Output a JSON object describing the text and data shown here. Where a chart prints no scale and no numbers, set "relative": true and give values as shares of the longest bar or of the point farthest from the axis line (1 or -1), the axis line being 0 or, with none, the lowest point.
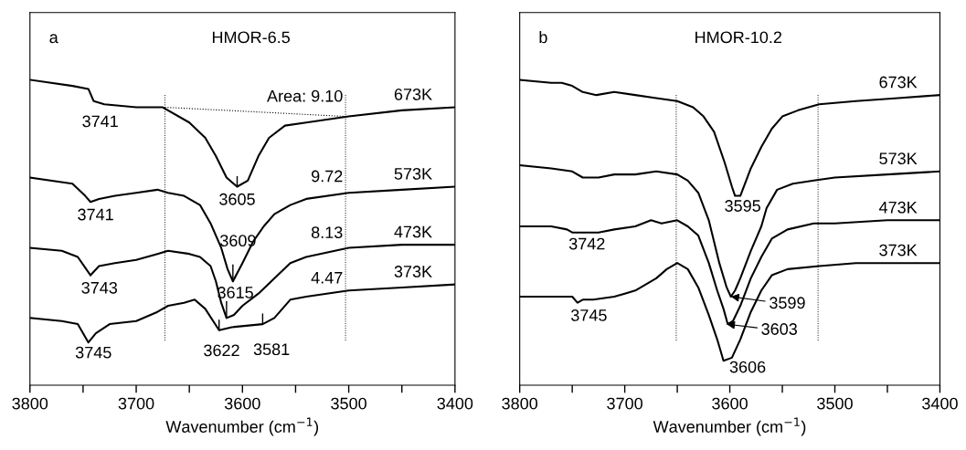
{
  "chart_data": [
    {
      "type": "line",
      "relative": true,
      "title": "HMOR-6.5",
      "xlabel": "Wavenumber (cm$^{−1}$)",
      "xlim": [
        3800,
        3400
      ],
      "xticks": [
        3800,
        {
          "value": 3750,
          "label": null
        },
        3700,
        {
          "value": 3650,
          "label": null
        },
        3600,
        {
          "value": 3550,
          "label": null
        },
        3500,
        {
          "value": 3450,
          "label": null
        },
        3400
      ],
      "grid": false,
      "legend": false,
      "marker": "none",
      "line_style": "solid",
      "ref_lines": [
        {
          "axis": "x",
          "value": 3673,
          "label": null,
          "color": "#000000",
          "line_style": "dotted"
        },
        {
          "axis": "x",
          "value": 3503,
          "label": null,
          "color": "#000000",
          "line_style": "dotted"
        }
      ],
      "series": [
        {
          "name": "673K",
          "color": "#000000",
          "x": [
            3800,
            3760,
            3745,
            3740,
            3730,
            3700,
            3675,
            3650,
            3635,
            3625,
            3615,
            3605,
            3595,
            3585,
            3575,
            3560,
            3540,
            3500,
            3450,
            3400
          ],
          "values": [
            1.0,
            0.98,
            0.97,
            0.93,
            0.92,
            0.91,
            0.91,
            0.86,
            0.81,
            0.75,
            0.68,
            0.65,
            0.67,
            0.75,
            0.81,
            0.85,
            0.86,
            0.88,
            0.9,
            0.91
          ]
        },
        {
          "name": "573K",
          "color": "#000000",
          "x": [
            3800,
            3760,
            3748,
            3743,
            3735,
            3720,
            3700,
            3680,
            3670,
            3655,
            3640,
            3630,
            3620,
            3614,
            3609,
            3600,
            3590,
            3580,
            3570,
            3555,
            3540,
            3500,
            3450,
            3400
          ],
          "values": [
            0.68,
            0.66,
            0.62,
            0.6,
            0.61,
            0.62,
            0.63,
            0.64,
            0.63,
            0.62,
            0.59,
            0.53,
            0.45,
            0.38,
            0.34,
            0.4,
            0.47,
            0.52,
            0.56,
            0.59,
            0.61,
            0.63,
            0.64,
            0.65
          ]
        },
        {
          "name": "473K",
          "color": "#000000",
          "x": [
            3800,
            3770,
            3755,
            3743,
            3735,
            3720,
            3700,
            3680,
            3670,
            3650,
            3640,
            3630,
            3625,
            3620,
            3615,
            3608,
            3600,
            3585,
            3570,
            3555,
            3540,
            3500,
            3450,
            3400
          ],
          "values": [
            0.45,
            0.44,
            0.42,
            0.36,
            0.39,
            0.4,
            0.41,
            0.43,
            0.44,
            0.43,
            0.42,
            0.39,
            0.34,
            0.27,
            0.22,
            0.23,
            0.26,
            0.3,
            0.35,
            0.4,
            0.42,
            0.45,
            0.46,
            0.46
          ]
        },
        {
          "name": "373K",
          "color": "#000000",
          "x": [
            3800,
            3770,
            3755,
            3745,
            3738,
            3725,
            3700,
            3680,
            3670,
            3655,
            3645,
            3635,
            3622,
            3610,
            3581,
            3570,
            3555,
            3540,
            3500,
            3450,
            3400
          ],
          "values": [
            0.22,
            0.21,
            0.2,
            0.14,
            0.17,
            0.2,
            0.21,
            0.24,
            0.26,
            0.27,
            0.28,
            0.25,
            0.18,
            0.19,
            0.2,
            0.22,
            0.28,
            0.29,
            0.31,
            0.32,
            0.33
          ]
        },
        {
          "type": "line",
          "color": "#000000",
          "line_style": "dotted",
          "x": [
            3673,
            3503
          ],
          "values": [
            0.91,
            0.88
          ]
        }
      ],
      "annotations": [
        "a",
        {
          "text": "3741",
          "x": 3741,
          "y": 0.93
        },
        {
          "text": "3605",
          "x": 3605,
          "y": 0.65
        },
        {
          "text": "3741",
          "x": 3743,
          "y": 0.6
        },
        {
          "text": "3609",
          "x": 3609,
          "y": 0.34
        },
        {
          "text": "3743",
          "x": 3743,
          "y": 0.36
        },
        {
          "text": "3615",
          "x": 3615,
          "y": 0.22
        },
        {
          "text": "3745",
          "x": 3745,
          "y": 0.14
        },
        {
          "text": "3622",
          "x": 3622,
          "y": 0.18
        },
        {
          "text": "3581",
          "x": 3581,
          "y": 0.2
        },
        {
          "text": "Area: 9.10",
          "x": 3503,
          "y": 0.88
        },
        {
          "text": "9.72",
          "x": 3503,
          "y": 0.63
        },
        {
          "text": "8.13",
          "x": 3503,
          "y": 0.45
        },
        {
          "text": "4.47",
          "x": 3503,
          "y": 0.31
        }
      ]
    },
    {
      "type": "line",
      "relative": true,
      "title": "HMOR-10.2",
      "xlabel": "Wavenumber (cm$^{−1}$)",
      "xlim": [
        3800,
        3400
      ],
      "xticks": [
        3800,
        {
          "value": 3750,
          "label": null
        },
        3700,
        {
          "value": 3650,
          "label": null
        },
        3600,
        {
          "value": 3550,
          "label": null
        },
        3500,
        {
          "value": 3450,
          "label": null
        },
        3400
      ],
      "grid": false,
      "legend": false,
      "marker": "none",
      "line_style": "solid",
      "ref_lines": [
        {
          "axis": "x",
          "value": 3651,
          "label": null,
          "color": "#000000",
          "line_style": "dotted"
        },
        {
          "axis": "x",
          "value": 3516,
          "label": null,
          "color": "#000000",
          "line_style": "dotted"
        }
      ],
      "series": [
        {
          "name": "673K",
          "color": "#000000",
          "x": [
            3800,
            3770,
            3760,
            3750,
            3740,
            3727,
            3710,
            3690,
            3670,
            3650,
            3635,
            3625,
            3615,
            3605,
            3598,
            3595,
            3590,
            3580,
            3570,
            3560,
            3550,
            3535,
            3515,
            3480,
            3440,
            3400
          ],
          "values": [
            1.0,
            0.99,
            0.99,
            0.98,
            0.96,
            0.95,
            0.96,
            0.95,
            0.94,
            0.93,
            0.91,
            0.88,
            0.83,
            0.73,
            0.65,
            0.62,
            0.62,
            0.71,
            0.78,
            0.84,
            0.88,
            0.9,
            0.92,
            0.93,
            0.94,
            0.95
          ]
        },
        {
          "name": "573K",
          "color": "#000000",
          "x": [
            3800,
            3770,
            3750,
            3740,
            3725,
            3710,
            3690,
            3670,
            3650,
            3640,
            3630,
            3620,
            3610,
            3603,
            3599,
            3595,
            3590,
            3580,
            3570,
            3565,
            3555,
            3540,
            3520,
            3500,
            3450,
            3400
          ],
          "values": [
            0.72,
            0.71,
            0.7,
            0.68,
            0.68,
            0.69,
            0.69,
            0.7,
            0.69,
            0.67,
            0.63,
            0.54,
            0.4,
            0.32,
            0.29,
            0.31,
            0.35,
            0.44,
            0.52,
            0.58,
            0.64,
            0.66,
            0.67,
            0.68,
            0.69,
            0.7
          ]
        },
        {
          "name": "473K",
          "color": "#000000",
          "x": [
            3800,
            3770,
            3755,
            3750,
            3740,
            3725,
            3710,
            3690,
            3675,
            3665,
            3650,
            3640,
            3630,
            3620,
            3612,
            3606,
            3602,
            3597,
            3590,
            3580,
            3570,
            3560,
            3545,
            3520,
            3500,
            3450,
            3400
          ],
          "values": [
            0.52,
            0.52,
            0.51,
            0.5,
            0.5,
            0.5,
            0.51,
            0.52,
            0.54,
            0.53,
            0.54,
            0.52,
            0.49,
            0.4,
            0.31,
            0.25,
            0.2,
            0.21,
            0.26,
            0.35,
            0.42,
            0.48,
            0.51,
            0.53,
            0.53,
            0.54,
            0.54
          ]
        },
        {
          "name": "373K",
          "color": "#000000",
          "x": [
            3800,
            3780,
            3760,
            3750,
            3745,
            3740,
            3730,
            3710,
            3700,
            3690,
            3680,
            3670,
            3660,
            3650,
            3640,
            3630,
            3620,
            3612,
            3606,
            3598,
            3590,
            3580,
            3570,
            3560,
            3545,
            3515,
            3480,
            3440,
            3400
          ],
          "values": [
            0.29,
            0.29,
            0.29,
            0.29,
            0.27,
            0.28,
            0.28,
            0.29,
            0.3,
            0.31,
            0.33,
            0.35,
            0.38,
            0.4,
            0.38,
            0.32,
            0.23,
            0.15,
            0.08,
            0.09,
            0.15,
            0.24,
            0.31,
            0.36,
            0.38,
            0.39,
            0.4,
            0.4,
            0.4
          ]
        }
      ],
      "annotations": [
        "b",
        {
          "text": "3595",
          "x": 3595,
          "y": 0.62
        },
        {
          "text": "3742",
          "x": 3742,
          "y": 0.5
        },
        {
          "text": "3745",
          "x": 3745,
          "y": 0.27
        },
        {
          "text": "3599",
          "x": 3599,
          "y": 0.29
        },
        {
          "text": "3603",
          "x": 3603,
          "y": 0.2
        },
        {
          "text": "3606",
          "x": 3606,
          "y": 0.08
        }
      ]
    }
  ]
}
